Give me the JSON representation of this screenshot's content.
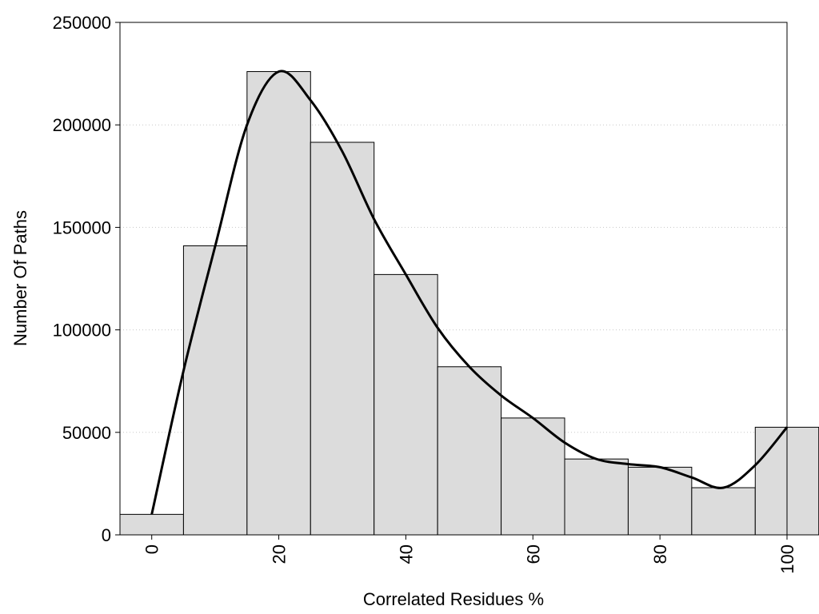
{
  "chart_data": {
    "type": "bar",
    "title": "",
    "xlabel": "Correlated Residues %",
    "ylabel": "Number Of Paths",
    "xlim": [
      -5,
      100
    ],
    "ylim": [
      0,
      250000
    ],
    "x_ticks": [
      "0",
      "20",
      "40",
      "60",
      "80",
      "100"
    ],
    "y_ticks": [
      "0",
      "50000",
      "100000",
      "150000",
      "200000",
      "250000"
    ],
    "grid": "horizontal dotted",
    "legend": "none",
    "bin_width": 10,
    "bins": [
      {
        "x": 0,
        "value": 10000
      },
      {
        "x": 10,
        "value": 141000
      },
      {
        "x": 20,
        "value": 226000
      },
      {
        "x": 30,
        "value": 191500
      },
      {
        "x": 40,
        "value": 127000
      },
      {
        "x": 50,
        "value": 82000
      },
      {
        "x": 60,
        "value": 57000
      },
      {
        "x": 70,
        "value": 37000
      },
      {
        "x": 80,
        "value": 33000
      },
      {
        "x": 90,
        "value": 23000
      },
      {
        "x": 100,
        "value": 52500
      }
    ],
    "density_curve": {
      "x": [
        0,
        5,
        10,
        15,
        20,
        25,
        30,
        35,
        40,
        45,
        50,
        55,
        60,
        65,
        70,
        75,
        80,
        85,
        90,
        95,
        100
      ],
      "y": [
        10000,
        80000,
        141000,
        200000,
        226000,
        212000,
        187000,
        154000,
        127000,
        101000,
        82000,
        68000,
        57000,
        45000,
        37000,
        34500,
        33000,
        28000,
        23000,
        34000,
        52500
      ]
    },
    "colors": {
      "bar_fill": "#dcdcdc",
      "bar_stroke": "#000000",
      "curve": "#000000",
      "grid": "#c8c8c8"
    }
  }
}
